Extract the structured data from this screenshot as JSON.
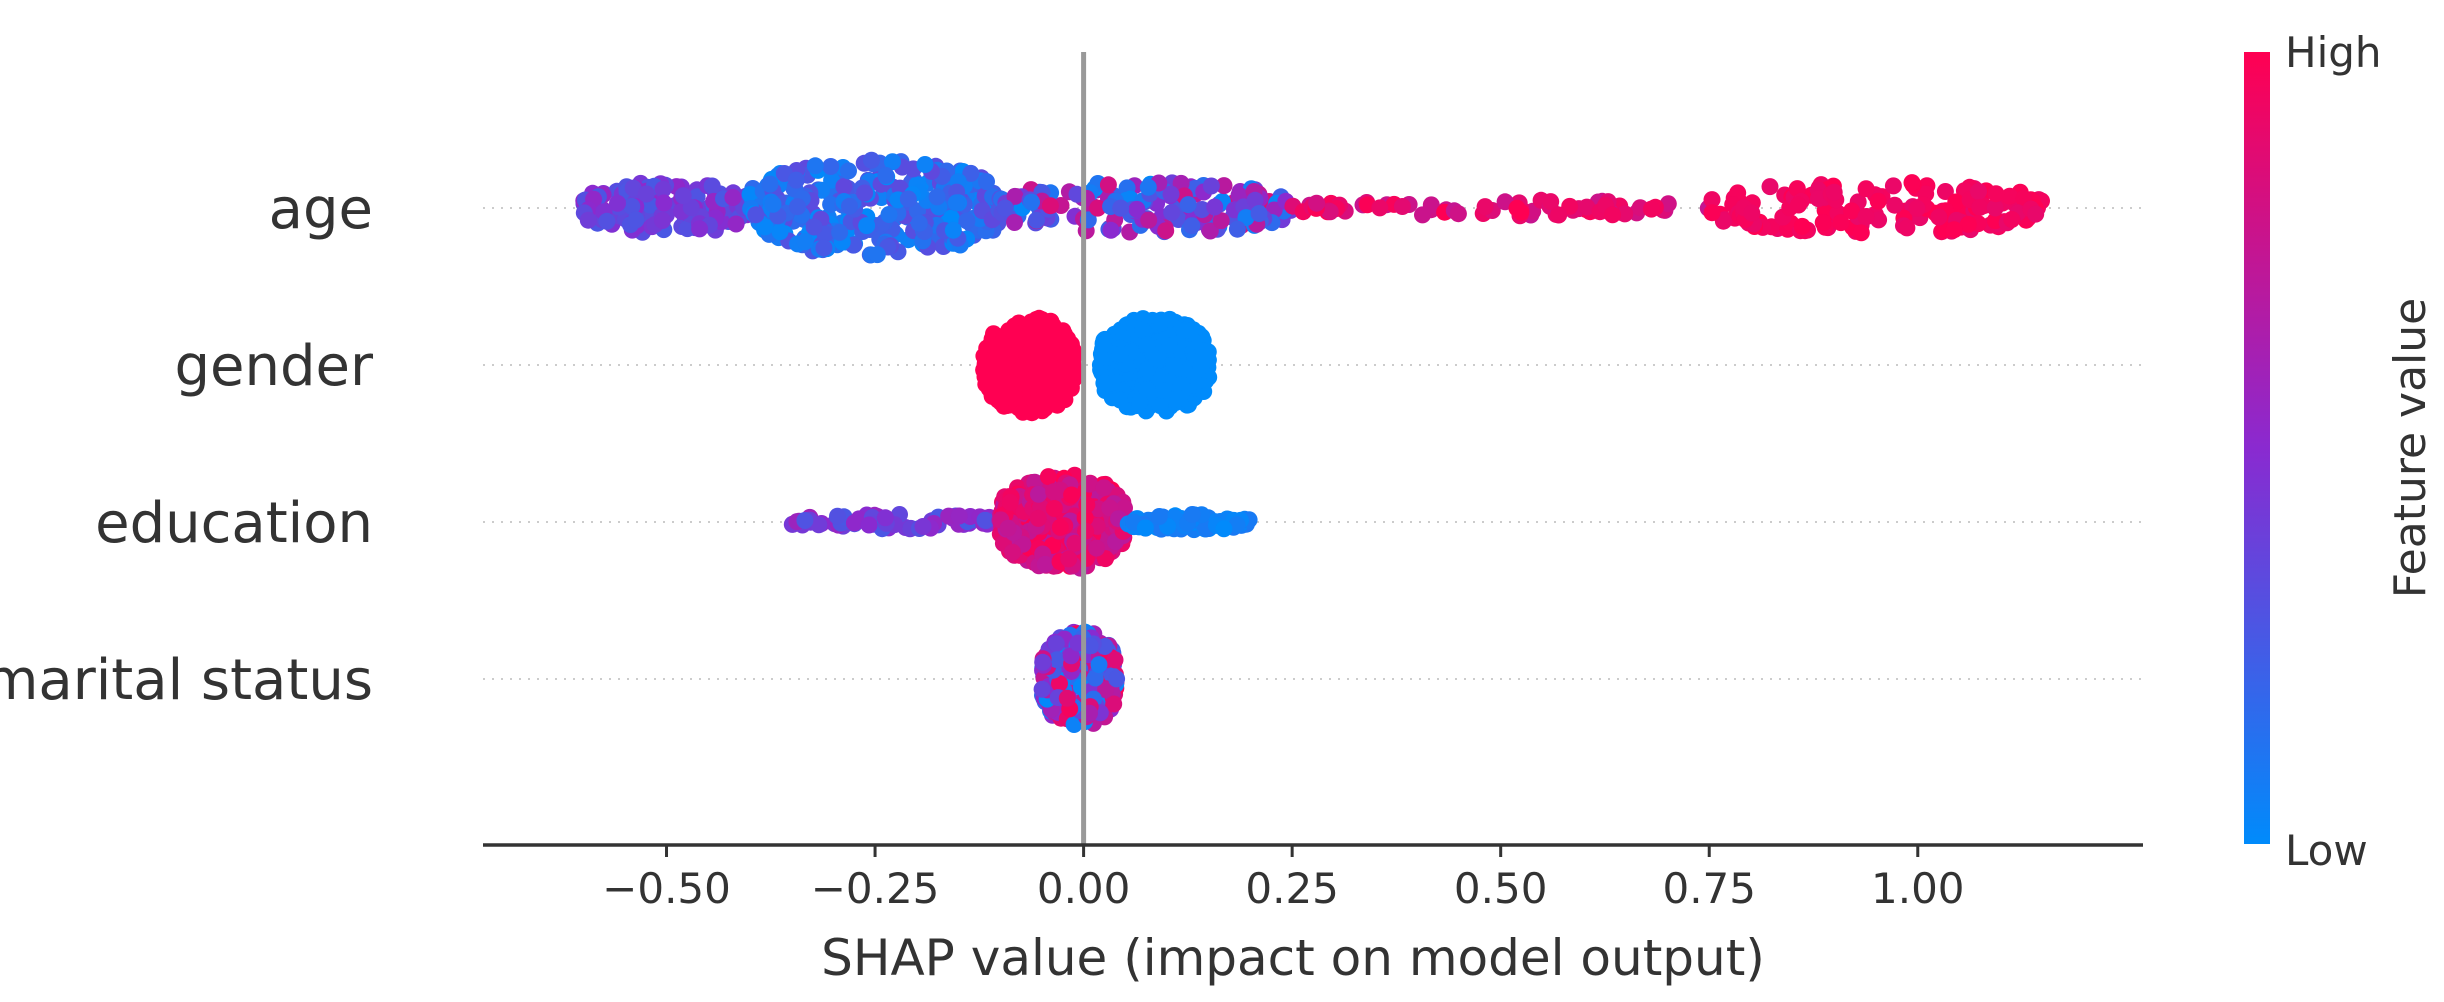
{
  "chart_data": {
    "type": "scatter",
    "subtype": "shap_beeswarm",
    "title": "",
    "xlabel": "SHAP value (impact on model output)",
    "ylabel": "",
    "xlim": [
      -0.72,
      1.27
    ],
    "x_ticks": [
      -0.5,
      -0.25,
      0.0,
      0.25,
      0.5,
      0.75,
      1.0
    ],
    "x_tick_labels": [
      "−0.50",
      "−0.25",
      "0.00",
      "0.25",
      "0.50",
      "0.75",
      "1.00"
    ],
    "zero_line": 0,
    "features": [
      "age",
      "gender",
      "education",
      "marital status"
    ],
    "colorbar": {
      "title": "Feature value",
      "high_label": "High",
      "low_label": "Low",
      "high_color": "#ff0052",
      "mid_color": "#8a2ad0",
      "low_color": "#008bfb"
    },
    "series": [
      {
        "name": "age",
        "x_range": [
          -0.6,
          1.15
        ],
        "segments": [
          {
            "x_min": -0.6,
            "x_max": -0.4,
            "value_lo": 0.25,
            "value_hi": 0.55,
            "density": "medium"
          },
          {
            "x_min": -0.4,
            "x_max": -0.1,
            "value_lo": 0.0,
            "value_hi": 0.35,
            "density": "high"
          },
          {
            "x_min": -0.1,
            "x_max": 0.25,
            "value_lo": 0.0,
            "value_hi": 0.85,
            "density": "medium"
          },
          {
            "x_min": 0.25,
            "x_max": 0.75,
            "value_lo": 0.75,
            "value_hi": 1.0,
            "density": "low"
          },
          {
            "x_min": 0.75,
            "x_max": 1.15,
            "value_lo": 0.9,
            "value_hi": 1.0,
            "density": "medium"
          }
        ]
      },
      {
        "name": "gender",
        "x_range": [
          -0.12,
          0.15
        ],
        "segments": [
          {
            "x_min": -0.12,
            "x_max": -0.01,
            "value_lo": 1.0,
            "value_hi": 1.0,
            "density": "high"
          },
          {
            "x_min": 0.02,
            "x_max": 0.15,
            "value_lo": 0.0,
            "value_hi": 0.0,
            "density": "high"
          }
        ]
      },
      {
        "name": "education",
        "x_range": [
          -0.35,
          0.2
        ],
        "segments": [
          {
            "x_min": -0.35,
            "x_max": -0.1,
            "value_lo": 0.25,
            "value_hi": 0.6,
            "density": "low"
          },
          {
            "x_min": -0.1,
            "x_max": 0.05,
            "value_lo": 0.7,
            "value_hi": 1.0,
            "density": "high"
          },
          {
            "x_min": 0.05,
            "x_max": 0.2,
            "value_lo": 0.0,
            "value_hi": 0.1,
            "density": "low"
          }
        ]
      },
      {
        "name": "marital status",
        "x_range": [
          -0.05,
          0.04
        ],
        "segments": [
          {
            "x_min": -0.05,
            "x_max": 0.04,
            "value_lo": 0.0,
            "value_hi": 1.0,
            "density": "high"
          }
        ]
      }
    ]
  }
}
